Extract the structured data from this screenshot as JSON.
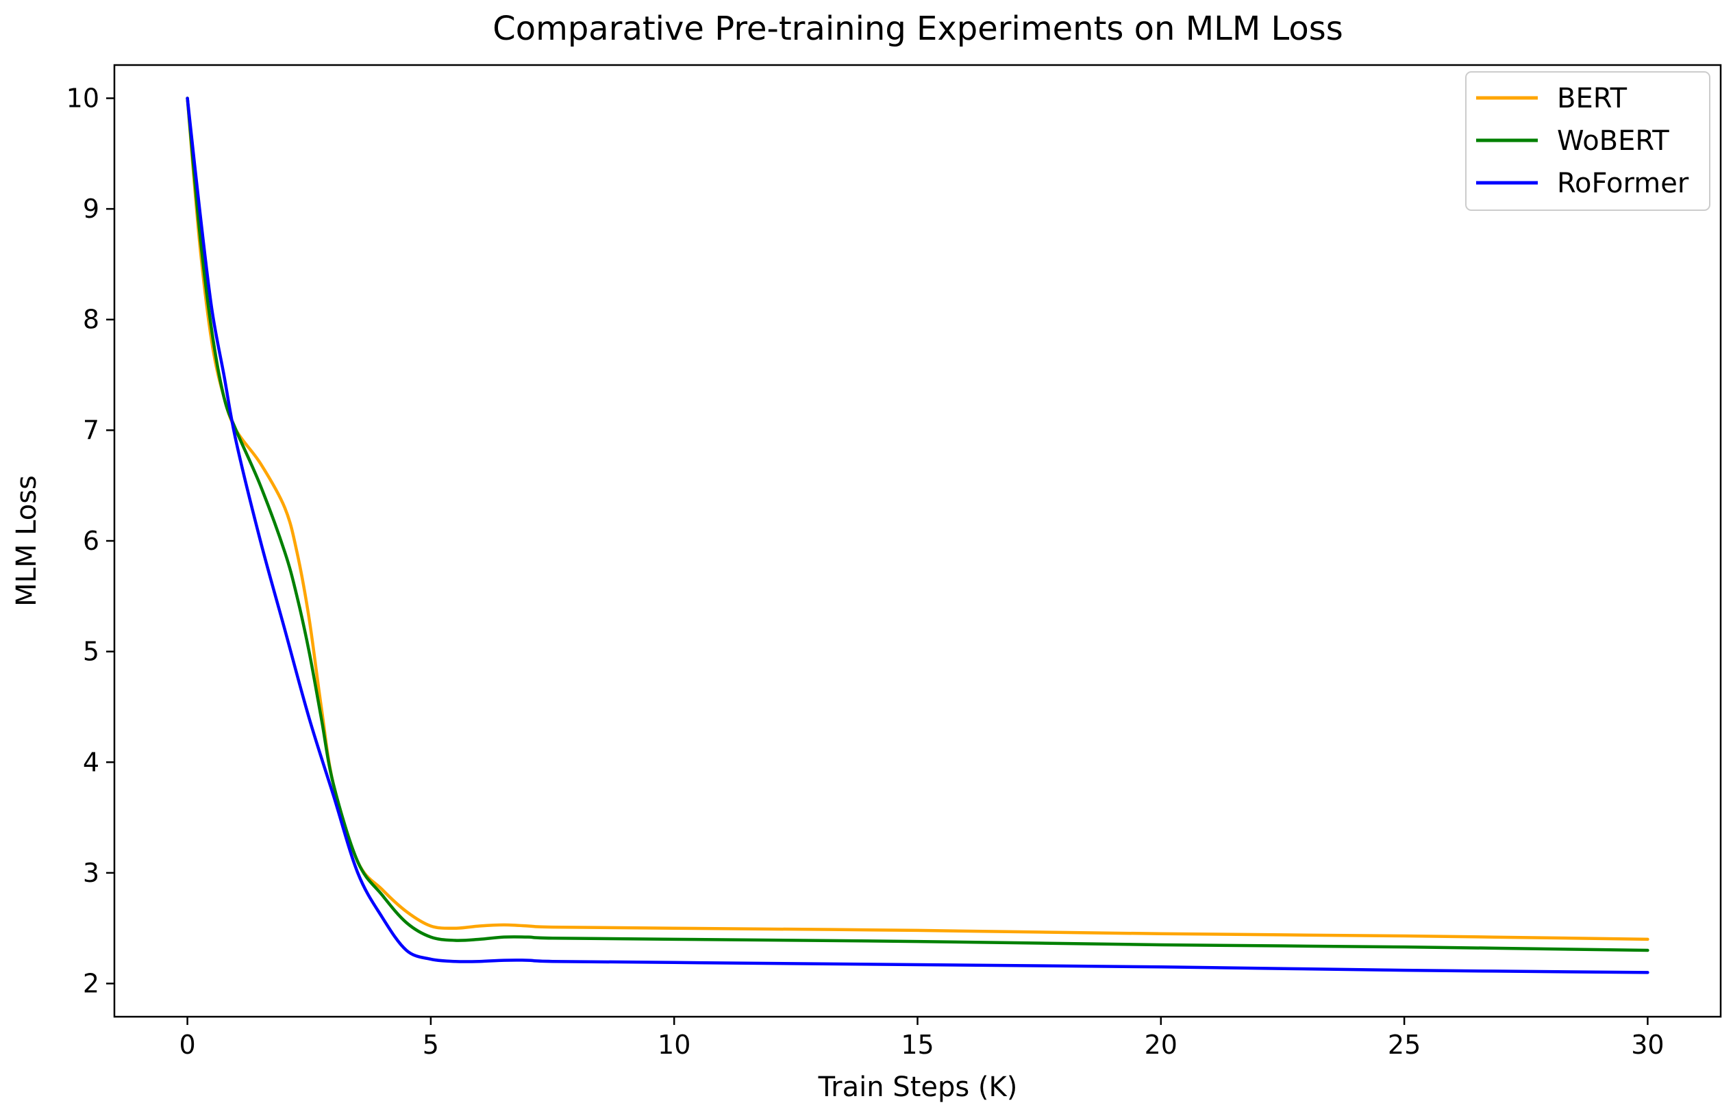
{
  "chart_data": {
    "type": "line",
    "title": "Comparative Pre-training Experiments on MLM Loss",
    "xlabel": "Train Steps (K)",
    "ylabel": "MLM Loss",
    "xlim": [
      -1.5,
      31.5
    ],
    "ylim": [
      1.7,
      10.3
    ],
    "xticks": [
      0,
      5,
      10,
      15,
      20,
      25,
      30
    ],
    "yticks": [
      2,
      3,
      4,
      5,
      6,
      7,
      8,
      9,
      10
    ],
    "grid": false,
    "legend_position": "top-right",
    "series": [
      {
        "name": "BERT",
        "color": "#FFA500",
        "x": [
          0,
          0.25,
          0.5,
          0.75,
          1,
          1.5,
          2,
          2.25,
          2.5,
          2.75,
          3,
          3.5,
          4,
          4.5,
          5,
          5.5,
          6,
          6.5,
          7,
          7.5,
          10,
          15,
          20,
          25,
          30
        ],
        "y": [
          10,
          8.7,
          7.8,
          7.3,
          7.0,
          6.7,
          6.3,
          5.9,
          5.3,
          4.5,
          3.8,
          3.1,
          2.85,
          2.65,
          2.52,
          2.5,
          2.52,
          2.53,
          2.52,
          2.51,
          2.5,
          2.48,
          2.45,
          2.43,
          2.4
        ]
      },
      {
        "name": "WoBERT",
        "color": "#008000",
        "x": [
          0,
          0.25,
          0.5,
          0.75,
          1,
          1.5,
          2,
          2.25,
          2.5,
          2.75,
          3,
          3.5,
          4,
          4.5,
          5,
          5.5,
          6,
          6.5,
          7,
          7.5,
          10,
          15,
          20,
          25,
          30
        ],
        "y": [
          10,
          8.8,
          7.9,
          7.3,
          7.0,
          6.5,
          5.9,
          5.5,
          5.0,
          4.4,
          3.8,
          3.1,
          2.8,
          2.55,
          2.42,
          2.39,
          2.4,
          2.42,
          2.42,
          2.41,
          2.4,
          2.38,
          2.35,
          2.33,
          2.3
        ]
      },
      {
        "name": "RoFormer",
        "color": "#0000FF",
        "x": [
          0,
          0.25,
          0.5,
          0.75,
          1,
          1.5,
          2,
          2.5,
          3,
          3.5,
          4,
          4.5,
          5,
          5.5,
          6,
          6.5,
          7,
          7.5,
          10,
          15,
          20,
          25,
          30
        ],
        "y": [
          10,
          9.0,
          8.1,
          7.5,
          6.9,
          6.0,
          5.2,
          4.4,
          3.7,
          3.0,
          2.6,
          2.3,
          2.22,
          2.2,
          2.2,
          2.21,
          2.21,
          2.2,
          2.19,
          2.17,
          2.15,
          2.12,
          2.1
        ]
      }
    ]
  }
}
